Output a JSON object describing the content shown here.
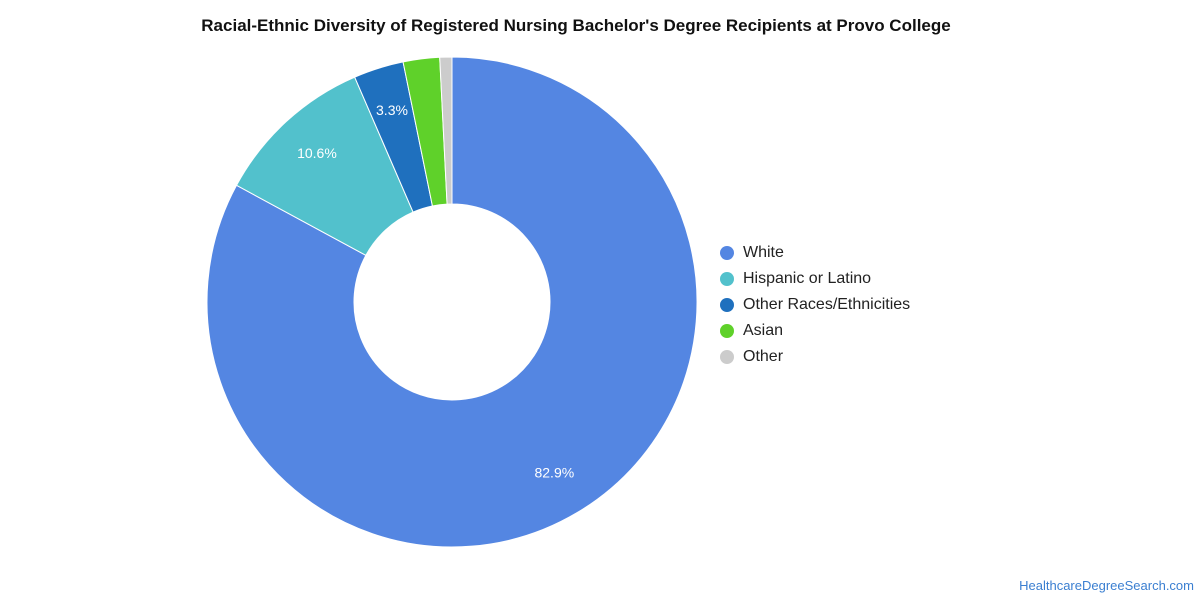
{
  "title": "Racial-Ethnic Diversity of Registered Nursing Bachelor's Degree Recipients at Provo College",
  "source": "HealthcareDegreeSearch.com",
  "chart_data": {
    "type": "pie",
    "title": "Racial-Ethnic Diversity of Registered Nursing Bachelor's Degree Recipients at Provo College",
    "donut": true,
    "legend_position": "right",
    "slices": [
      {
        "name": "White",
        "value": 82.9,
        "label": "82.9%",
        "color": "#5486e2"
      },
      {
        "name": "Hispanic or Latino",
        "value": 10.6,
        "label": "10.6%",
        "color": "#52c1cc"
      },
      {
        "name": "Other Races/Ethnicities",
        "value": 3.3,
        "label": "3.3%",
        "color": "#1f70be"
      },
      {
        "name": "Asian",
        "value": 2.4,
        "label": "",
        "color": "#5fd12a"
      },
      {
        "name": "Other",
        "value": 0.8,
        "label": "",
        "color": "#cccccc"
      }
    ]
  }
}
